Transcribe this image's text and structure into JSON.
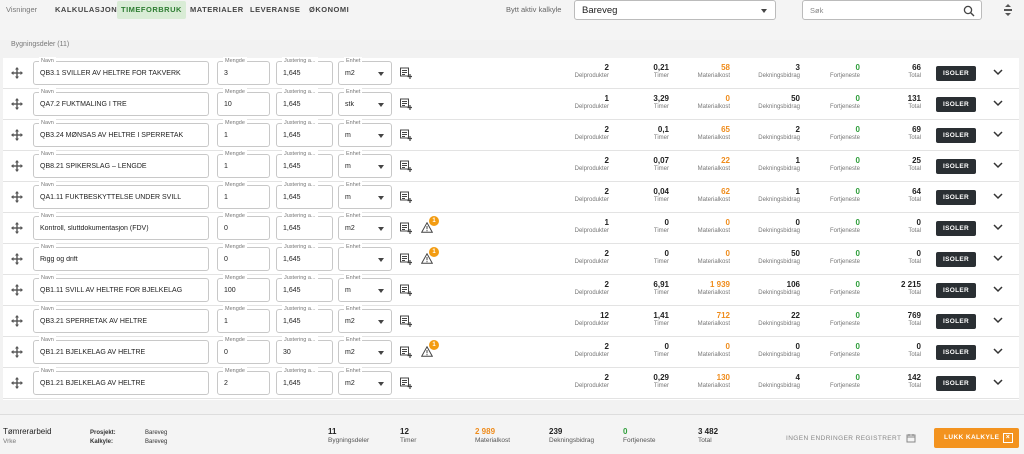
{
  "header": {
    "views_label": "Visninger",
    "tabs": [
      {
        "label": "KALKULASJON"
      },
      {
        "label": "TIMEFORBRUK"
      },
      {
        "label": "MATERIALER"
      },
      {
        "label": "LEVERANSE"
      },
      {
        "label": "ØKONOMI"
      }
    ],
    "active_tab": "TIMEFORBRUK",
    "active_calc_label": "Bytt aktiv kalkyle",
    "active_calc_value": "Bareveg",
    "search_placeholder": "Søk"
  },
  "section_title": "Bygningsdeler (11)",
  "field_labels": {
    "name": "Navn",
    "qty": "Mengde",
    "adj": "Justering a...",
    "unit": "Enhet"
  },
  "stat_labels": {
    "parts": "Delprodukter",
    "hours": "Timer",
    "material": "Materialkost",
    "margin": "Dekningsbidrag",
    "profit": "Fortjeneste",
    "total": "Total"
  },
  "isolate_label": "ISOLER",
  "rows": [
    {
      "name": "QB3.1 SVILLER AV HELTRE FOR TAKVERK",
      "qty": "3",
      "adj": "1,645",
      "unit": "m2",
      "warning": null,
      "parts": "2",
      "hours": "0,21",
      "material": "58",
      "margin": "3",
      "profit": "0",
      "total": "66"
    },
    {
      "name": "QA7.2 FUKTMÅLING I TRE",
      "qty": "10",
      "adj": "1,645",
      "unit": "stk",
      "warning": null,
      "parts": "1",
      "hours": "3,29",
      "material": "0",
      "margin": "50",
      "profit": "0",
      "total": "131"
    },
    {
      "name": "QB3.24 MØNSÅS AV HELTRE I SPERRETAK",
      "qty": "1",
      "adj": "1,645",
      "unit": "m",
      "warning": null,
      "parts": "2",
      "hours": "0,1",
      "material": "65",
      "margin": "2",
      "profit": "0",
      "total": "69"
    },
    {
      "name": "QB8.21 SPIKERSLAG – LENGDE",
      "qty": "1",
      "adj": "1,645",
      "unit": "m",
      "warning": null,
      "parts": "2",
      "hours": "0,07",
      "material": "22",
      "margin": "1",
      "profit": "0",
      "total": "25"
    },
    {
      "name": "QA1.11 FUKTBESKYTTELSE UNDER SVILL",
      "qty": "1",
      "adj": "1,645",
      "unit": "m",
      "warning": null,
      "parts": "2",
      "hours": "0,04",
      "material": "62",
      "margin": "1",
      "profit": "0",
      "total": "64"
    },
    {
      "name": "Kontroll, sluttdokumentasjon (FDV)",
      "qty": "0",
      "adj": "1,645",
      "unit": "m2",
      "warning": "1",
      "parts": "1",
      "hours": "0",
      "material": "0",
      "margin": "0",
      "profit": "0",
      "total": "0"
    },
    {
      "name": "Rigg og drift",
      "qty": "0",
      "adj": "1,645",
      "unit": "",
      "warning": "1",
      "parts": "2",
      "hours": "0",
      "material": "0",
      "margin": "50",
      "profit": "0",
      "total": "0"
    },
    {
      "name": "QB1.11 SVILL AV HELTRE FOR BJELKELAG",
      "qty": "100",
      "adj": "1,645",
      "unit": "m",
      "warning": null,
      "parts": "2",
      "hours": "6,91",
      "material": "1 939",
      "margin": "106",
      "profit": "0",
      "total": "2 215"
    },
    {
      "name": "QB3.21 SPERRETAK AV HELTRE",
      "qty": "1",
      "adj": "1,645",
      "unit": "m2",
      "warning": null,
      "parts": "12",
      "hours": "1,41",
      "material": "712",
      "margin": "22",
      "profit": "0",
      "total": "769"
    },
    {
      "name": "QB1.21 BJELKELAG AV HELTRE",
      "qty": "0",
      "adj": "30",
      "unit": "m2",
      "warning": "1",
      "parts": "2",
      "hours": "0",
      "material": "0",
      "margin": "0",
      "profit": "0",
      "total": "0"
    },
    {
      "name": "QB1.21 BJELKELAG AV HELTRE",
      "qty": "2",
      "adj": "1,645",
      "unit": "m2",
      "warning": null,
      "parts": "2",
      "hours": "0,29",
      "material": "130",
      "margin": "4",
      "profit": "0",
      "total": "142"
    }
  ],
  "footer": {
    "title": "Tømrerarbeid",
    "subtitle": "Vrke",
    "project_key": "Prosjekt:",
    "project_value": "Bareveg",
    "calc_key": "Kalkyle:",
    "calc_value": "Bareveg",
    "stats": [
      {
        "num": "11",
        "cap": "Bygningsdeler",
        "color": ""
      },
      {
        "num": "12",
        "cap": "Timer",
        "color": ""
      },
      {
        "num": "2 989",
        "cap": "Materialkost",
        "color": "orange"
      },
      {
        "num": "239",
        "cap": "Dekningsbidrag",
        "color": ""
      },
      {
        "num": "0",
        "cap": "Fortjeneste",
        "color": "green"
      },
      {
        "num": "3 482",
        "cap": "Total",
        "color": ""
      }
    ],
    "no_changes": "INGEN ENDRINGER REGISTRERT",
    "close_button": "LUKK KALKYLE"
  },
  "colors": {
    "accent": "#f3931f",
    "material": "#ef8c1c",
    "profit": "#2e9e3a",
    "active_tab_bg": "#d9ecd6",
    "dark_button": "#2a2f33"
  }
}
